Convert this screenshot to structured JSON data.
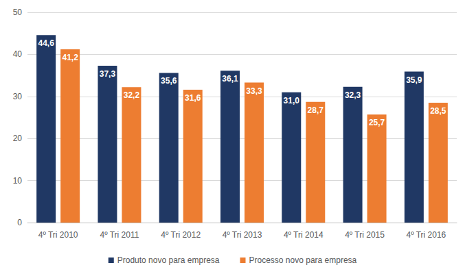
{
  "chart_data": {
    "type": "bar",
    "categories": [
      "4º Tri 2010",
      "4º Tri 2011",
      "4º Tri 2012",
      "4º Tri 2013",
      "4º Tri 2014",
      "4º Tri 2015",
      "4º Tri 2016"
    ],
    "series": [
      {
        "name": "Produto novo para empresa",
        "color": "#203864",
        "values": [
          44.6,
          37.3,
          35.6,
          36.1,
          31.0,
          32.3,
          35.9
        ],
        "value_labels": [
          "44,6",
          "37,3",
          "35,6",
          "36,1",
          "31,0",
          "32,3",
          "35,9"
        ]
      },
      {
        "name": "Processo novo para empresa",
        "color": "#ED7D31",
        "values": [
          41.2,
          32.2,
          31.6,
          33.3,
          28.7,
          25.7,
          28.5
        ],
        "value_labels": [
          "41,2",
          "32,2",
          "31,6",
          "33,3",
          "28,7",
          "25,7",
          "28,5"
        ]
      }
    ],
    "ylim": [
      0,
      50
    ],
    "yticks": [
      0,
      10,
      20,
      30,
      40,
      50
    ],
    "grid": true,
    "legend": "bottom",
    "data_labels": true
  }
}
